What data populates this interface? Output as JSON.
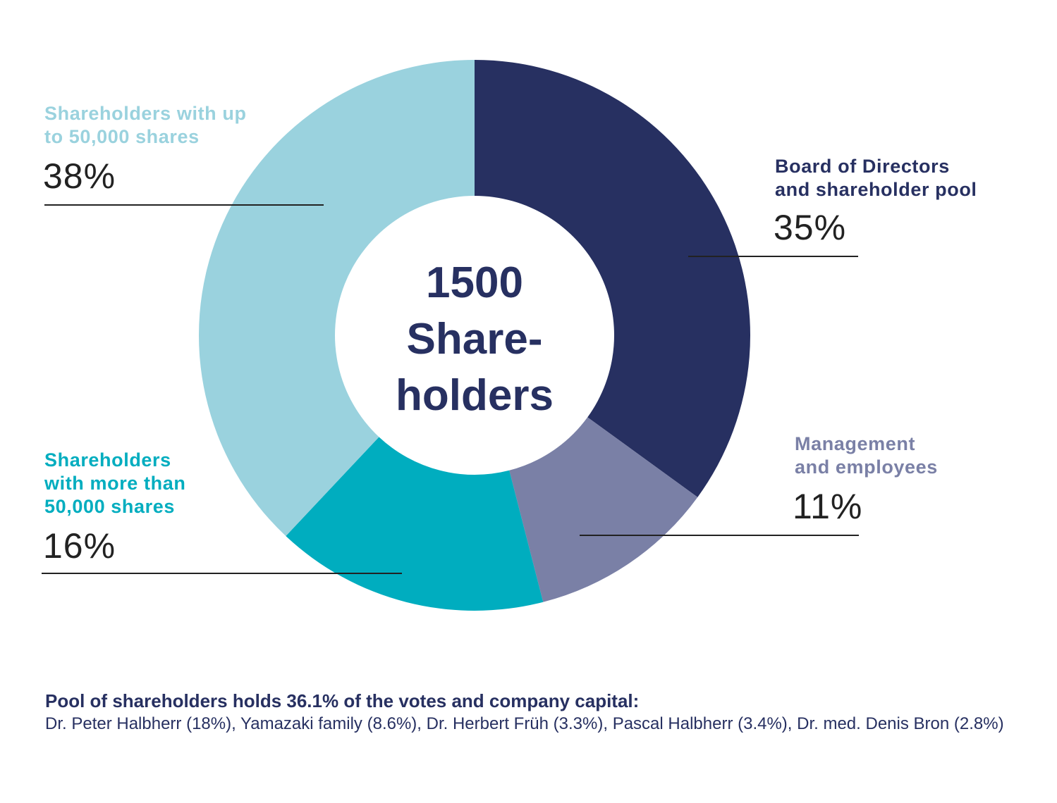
{
  "chart_data": {
    "type": "pie",
    "donut": true,
    "center_label": [
      "1500",
      "Share-",
      "holders"
    ],
    "slices": [
      {
        "label_lines": [
          "Board of Directors",
          "and shareholder pool"
        ],
        "value": 35,
        "value_label": "35%",
        "color": "#273061"
      },
      {
        "label_lines": [
          "Management",
          "and employees"
        ],
        "value": 11,
        "value_label": "11%",
        "color": "#7a80a6"
      },
      {
        "label_lines": [
          "Shareholders",
          "with more than",
          "50,000 shares"
        ],
        "value": 16,
        "value_label": "16%",
        "color": "#00adbf"
      },
      {
        "label_lines": [
          "Shareholders with up",
          "to 50,000 shares"
        ],
        "value": 38,
        "value_label": "38%",
        "color": "#9ad2de"
      }
    ],
    "start": "top",
    "direction": "clockwise"
  },
  "footnote": {
    "heading": "Pool of shareholders holds 36.1% of the votes and company capital:",
    "body": "Dr. Peter Halbherr (18%), Yamazaki family (8.6%), Dr. Herbert Früh (3.3%), Pascal Halbherr (3.4%), Dr. med. Denis Bron (2.8%)"
  }
}
